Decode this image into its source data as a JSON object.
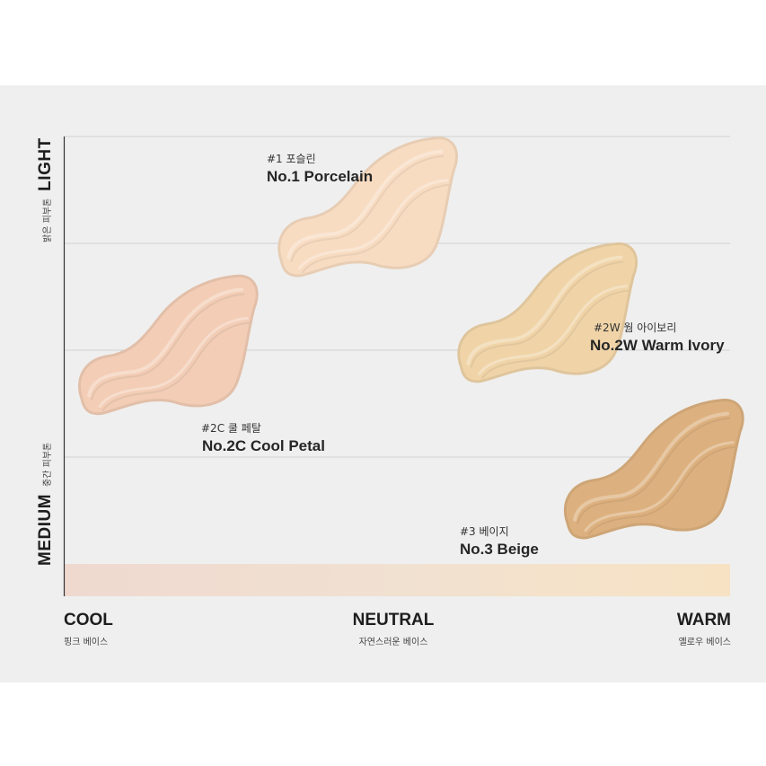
{
  "chart_data": {
    "type": "scatter",
    "x_axis": {
      "categories": [
        {
          "label": "COOL",
          "sublabel": "핑크 베이스"
        },
        {
          "label": "NEUTRAL",
          "sublabel": "자연스러운 베이스"
        },
        {
          "label": "WARM",
          "sublabel": "옐로우 베이스"
        }
      ]
    },
    "y_axis": {
      "categories": [
        {
          "label": "LIGHT",
          "sublabel": "밝은 피부톤"
        },
        {
          "label": "MEDIUM",
          "sublabel": "중간 피부톤"
        }
      ]
    },
    "gradient_bar_colors": [
      "#efd9cf",
      "#f1e1d1",
      "#f7e2c3"
    ],
    "points": [
      {
        "code": "#1 포슬린",
        "name": "No.1 Porcelain",
        "color": "#f8dcc2",
        "undertone": 0.45,
        "depth": 0.15
      },
      {
        "code": "#2C 쿨 페탈",
        "name": "No.2C Cool Petal",
        "color": "#f3cdb6",
        "undertone": 0.15,
        "depth": 0.45
      },
      {
        "code": "#2W 웜 아이보리",
        "name": "No.2W Warm Ivory",
        "color": "#f0d4a8",
        "undertone": 0.72,
        "depth": 0.38
      },
      {
        "code": "#3 베이지",
        "name": "No.3 Beige",
        "color": "#ddb17f",
        "undertone": 0.88,
        "depth": 0.72
      }
    ]
  }
}
